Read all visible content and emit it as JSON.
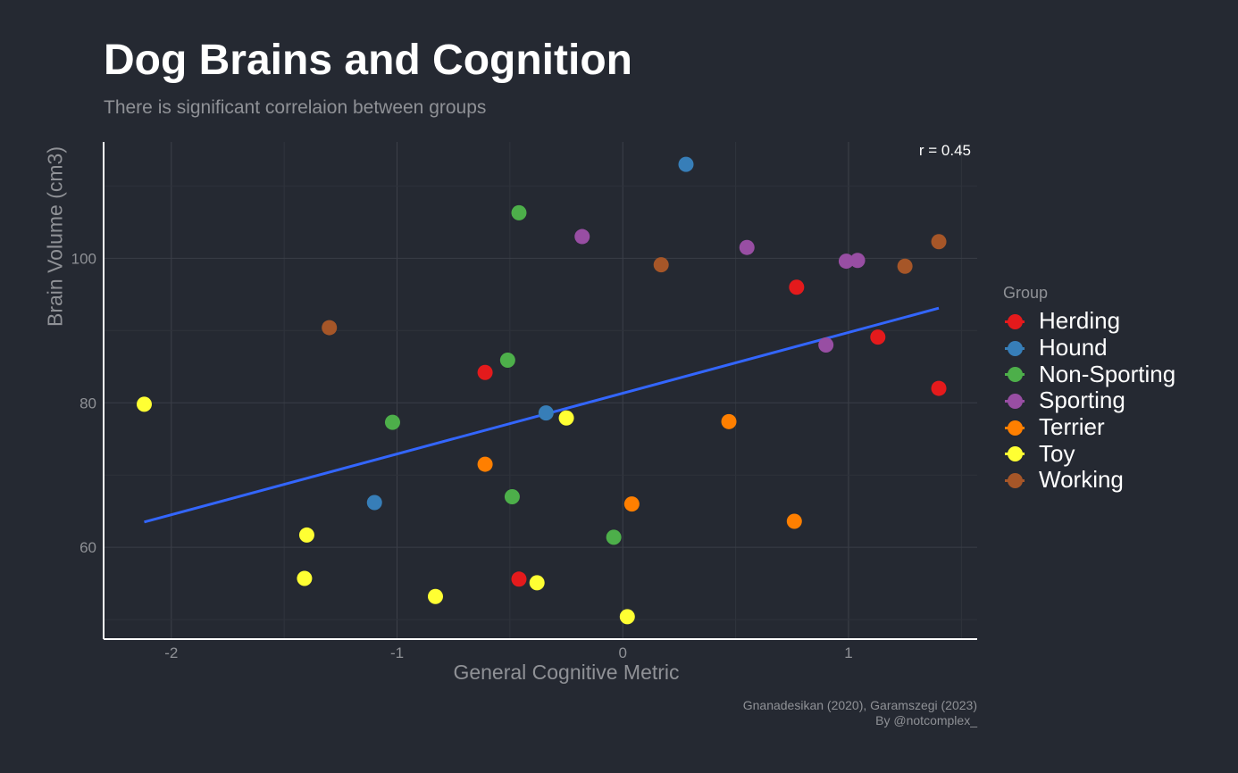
{
  "chart_data": {
    "type": "scatter",
    "title": "Dog Brains and Cognition",
    "subtitle": "There is significant correlaion between groups",
    "xlabel": "General Cognitive Metric",
    "ylabel": "Brain Volume (cm3)",
    "xlim": [
      -2.3,
      1.57
    ],
    "ylim": [
      47.3,
      116.1
    ],
    "x_ticks": [
      -2,
      -1,
      0,
      1
    ],
    "x_tick_labels": [
      "-2",
      "-1",
      "0",
      "1"
    ],
    "y_ticks": [
      60,
      80,
      100
    ],
    "y_tick_labels": [
      "60",
      "80",
      "100"
    ],
    "grid": true,
    "annotation": "r = 0.45",
    "caption_lines": [
      "Gnanadesikan (2020), Garamszegi (2023)",
      "By @notcomplex_"
    ],
    "legend_title": "Group",
    "legend_position": "right",
    "series": [
      {
        "name": "Herding",
        "color": "#e41a1c",
        "points": [
          [
            -0.61,
            84.2
          ],
          [
            -0.46,
            55.6
          ],
          [
            0.77,
            96.0
          ],
          [
            1.13,
            89.1
          ],
          [
            1.4,
            82.0
          ]
        ]
      },
      {
        "name": "Hound",
        "color": "#377eb8",
        "points": [
          [
            -1.1,
            66.2
          ],
          [
            -0.34,
            78.6
          ],
          [
            0.28,
            113.0
          ]
        ]
      },
      {
        "name": "Non-Sporting",
        "color": "#4daf4a",
        "points": [
          [
            -1.02,
            77.3
          ],
          [
            -0.51,
            85.9
          ],
          [
            -0.49,
            67.0
          ],
          [
            -0.46,
            106.3
          ],
          [
            -0.04,
            61.4
          ]
        ]
      },
      {
        "name": "Sporting",
        "color": "#984ea3",
        "points": [
          [
            -0.18,
            103.0
          ],
          [
            0.55,
            101.5
          ],
          [
            0.9,
            88.0
          ],
          [
            0.99,
            99.6
          ],
          [
            1.04,
            99.7
          ]
        ]
      },
      {
        "name": "Terrier",
        "color": "#ff7f00",
        "points": [
          [
            -0.61,
            71.5
          ],
          [
            0.04,
            66.0
          ],
          [
            0.47,
            77.4
          ],
          [
            0.76,
            63.6
          ]
        ]
      },
      {
        "name": "Toy",
        "color": "#ffff33",
        "points": [
          [
            -2.12,
            79.8
          ],
          [
            -1.4,
            61.7
          ],
          [
            -1.41,
            55.7
          ],
          [
            -0.83,
            53.2
          ],
          [
            -0.38,
            55.1
          ],
          [
            -0.25,
            77.9
          ],
          [
            0.02,
            50.4
          ]
        ]
      },
      {
        "name": "Working",
        "color": "#a65628",
        "points": [
          [
            -1.3,
            90.4
          ],
          [
            0.17,
            99.1
          ],
          [
            1.25,
            98.9
          ],
          [
            1.4,
            102.3
          ]
        ]
      }
    ],
    "trend_line": {
      "color": "#3366ff",
      "points": [
        [
          -2.12,
          63.5
        ],
        [
          1.4,
          93.1
        ]
      ]
    }
  }
}
